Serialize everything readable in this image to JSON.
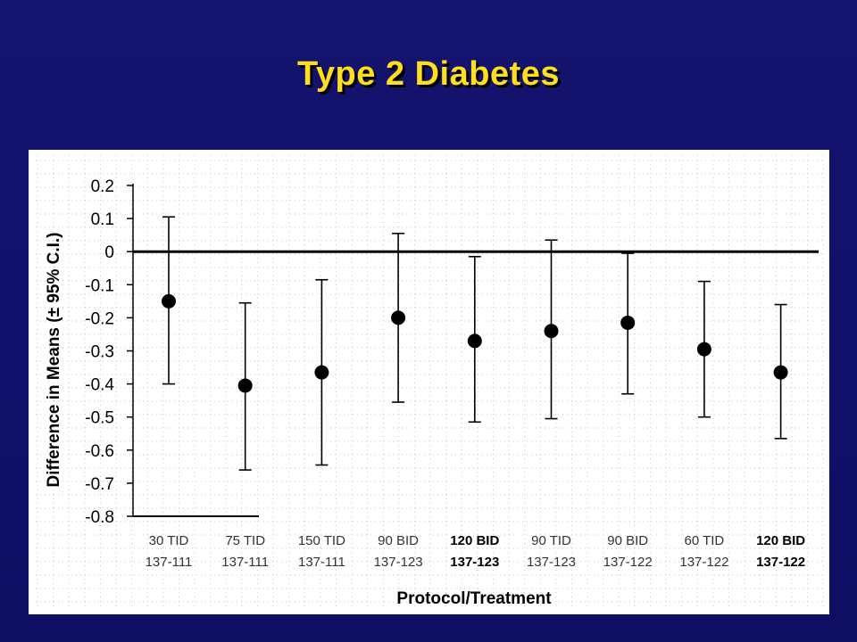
{
  "slide": {
    "title": "Type 2 Diabetes"
  },
  "colors": {
    "background": "#14146e",
    "title": "#ffde1f",
    "marker": "#000000"
  },
  "chart_data": {
    "type": "scatter",
    "subtype": "point-estimate with error bars",
    "title": "",
    "xlabel": "Protocol/Treatment",
    "ylabel": "Difference in Means (± 95% C.I.)",
    "ylim": [
      -0.8,
      0.2
    ],
    "yticks": [
      "0.2",
      "0.1",
      "0",
      "-0.1",
      "-0.2",
      "-0.3",
      "-0.4",
      "-0.5",
      "-0.6",
      "-0.7",
      "-0.8"
    ],
    "reference_line": 0,
    "grid": "dotted",
    "categories": [
      {
        "treatment": "30 TID",
        "protocol": "137-111",
        "bold": false
      },
      {
        "treatment": "75 TID",
        "protocol": "137-111",
        "bold": false
      },
      {
        "treatment": "150 TID",
        "protocol": "137-111",
        "bold": false
      },
      {
        "treatment": "90 BID",
        "protocol": "137-123",
        "bold": false
      },
      {
        "treatment": "120 BID",
        "protocol": "137-123",
        "bold": true
      },
      {
        "treatment": "90 TID",
        "protocol": "137-123",
        "bold": false
      },
      {
        "treatment": "90 BID",
        "protocol": "137-122",
        "bold": false
      },
      {
        "treatment": "60 TID",
        "protocol": "137-122",
        "bold": false
      },
      {
        "treatment": "120 BID",
        "protocol": "137-122",
        "bold": true
      }
    ],
    "series": [
      {
        "values": [
          -0.15,
          -0.405,
          -0.365,
          -0.2,
          -0.27,
          -0.24,
          -0.215,
          -0.295,
          -0.365
        ],
        "lower": [
          -0.4,
          -0.66,
          -0.645,
          -0.455,
          -0.515,
          -0.505,
          -0.43,
          -0.5,
          -0.565
        ],
        "upper": [
          0.105,
          -0.155,
          -0.085,
          0.055,
          -0.015,
          0.035,
          -0.005,
          -0.09,
          -0.16
        ]
      }
    ]
  }
}
